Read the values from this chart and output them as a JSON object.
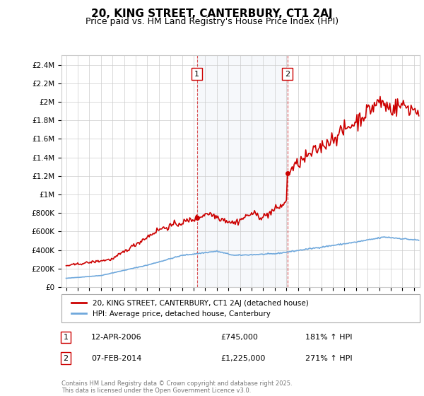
{
  "title": "20, KING STREET, CANTERBURY, CT1 2AJ",
  "subtitle": "Price paid vs. HM Land Registry's House Price Index (HPI)",
  "ylabel_ticks": [
    "£0",
    "£200K",
    "£400K",
    "£600K",
    "£800K",
    "£1M",
    "£1.2M",
    "£1.4M",
    "£1.6M",
    "£1.8M",
    "£2M",
    "£2.2M",
    "£2.4M"
  ],
  "ytick_values": [
    0,
    200000,
    400000,
    600000,
    800000,
    1000000,
    1200000,
    1400000,
    1600000,
    1800000,
    2000000,
    2200000,
    2400000
  ],
  "ylim": [
    0,
    2500000
  ],
  "xlim_start": 1994.6,
  "xlim_end": 2025.5,
  "sale1_date": 2006.28,
  "sale1_price": 745000,
  "sale1_label": "1",
  "sale2_date": 2014.08,
  "sale2_price": 1225000,
  "sale2_label": "2",
  "hpi_color": "#6fa8dc",
  "price_color": "#cc0000",
  "shade_color": "#dce6f1",
  "grid_color": "#cccccc",
  "legend_label_price": "20, KING STREET, CANTERBURY, CT1 2AJ (detached house)",
  "legend_label_hpi": "HPI: Average price, detached house, Canterbury",
  "footer": "Contains HM Land Registry data © Crown copyright and database right 2025.\nThis data is licensed under the Open Government Licence v3.0.",
  "background_color": "#ffffff",
  "title_fontsize": 11,
  "subtitle_fontsize": 9
}
